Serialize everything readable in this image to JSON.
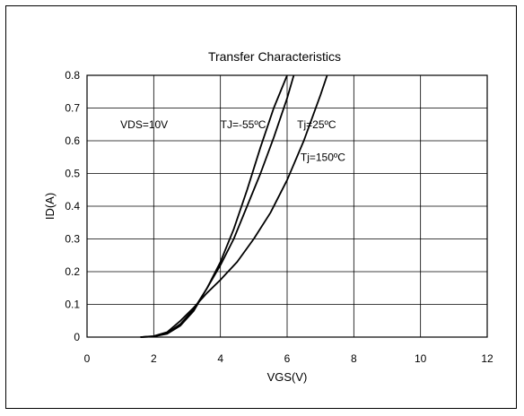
{
  "chart_data": {
    "type": "line",
    "title": "Transfer Characteristics",
    "xlabel": "VGS(V)",
    "ylabel": "ID(A)",
    "xlim": [
      0,
      12
    ],
    "ylim": [
      0,
      0.8
    ],
    "x_ticks": [
      0,
      2,
      4,
      6,
      8,
      10,
      12
    ],
    "y_ticks": [
      0,
      0.1,
      0.2,
      0.3,
      0.4,
      0.5,
      0.6,
      0.7,
      0.8
    ],
    "x_tick_labels": [
      "0",
      "2",
      "4",
      "6",
      "8",
      "10",
      "12"
    ],
    "y_tick_labels": [
      "0",
      "0.1",
      "0.2",
      "0.3",
      "0.4",
      "0.5",
      "0.6",
      "0.7",
      "0.8"
    ],
    "grid": true,
    "annotations": [
      {
        "text": "VDS=10V",
        "x": 1.0,
        "y": 0.65
      },
      {
        "text": "TJ=-55ºC",
        "x": 4.0,
        "y": 0.65
      },
      {
        "text": "Tj=25ºC",
        "x": 6.3,
        "y": 0.65
      },
      {
        "text": "Tj=150ºC",
        "x": 6.4,
        "y": 0.55
      }
    ],
    "series": [
      {
        "name": "TJ=-55ºC",
        "x": [
          1.6,
          2.0,
          2.4,
          2.8,
          3.2,
          3.6,
          4.0,
          4.4,
          4.8,
          5.2,
          5.6,
          6.0
        ],
        "y": [
          0.0,
          0.002,
          0.01,
          0.035,
          0.08,
          0.15,
          0.23,
          0.33,
          0.45,
          0.58,
          0.7,
          0.8
        ]
      },
      {
        "name": "Tj=25ºC",
        "x": [
          1.6,
          2.0,
          2.4,
          2.8,
          3.2,
          3.6,
          4.0,
          4.4,
          4.8,
          5.2,
          5.6,
          6.0,
          6.2
        ],
        "y": [
          0.0,
          0.002,
          0.012,
          0.04,
          0.085,
          0.15,
          0.22,
          0.3,
          0.4,
          0.5,
          0.61,
          0.73,
          0.8
        ]
      },
      {
        "name": "Tj=150ºC",
        "x": [
          1.6,
          2.0,
          2.4,
          2.8,
          3.2,
          3.6,
          4.0,
          4.5,
          5.0,
          5.5,
          6.0,
          6.5,
          7.0,
          7.2
        ],
        "y": [
          0.0,
          0.003,
          0.015,
          0.05,
          0.09,
          0.135,
          0.175,
          0.23,
          0.3,
          0.38,
          0.48,
          0.6,
          0.74,
          0.8
        ]
      }
    ]
  }
}
